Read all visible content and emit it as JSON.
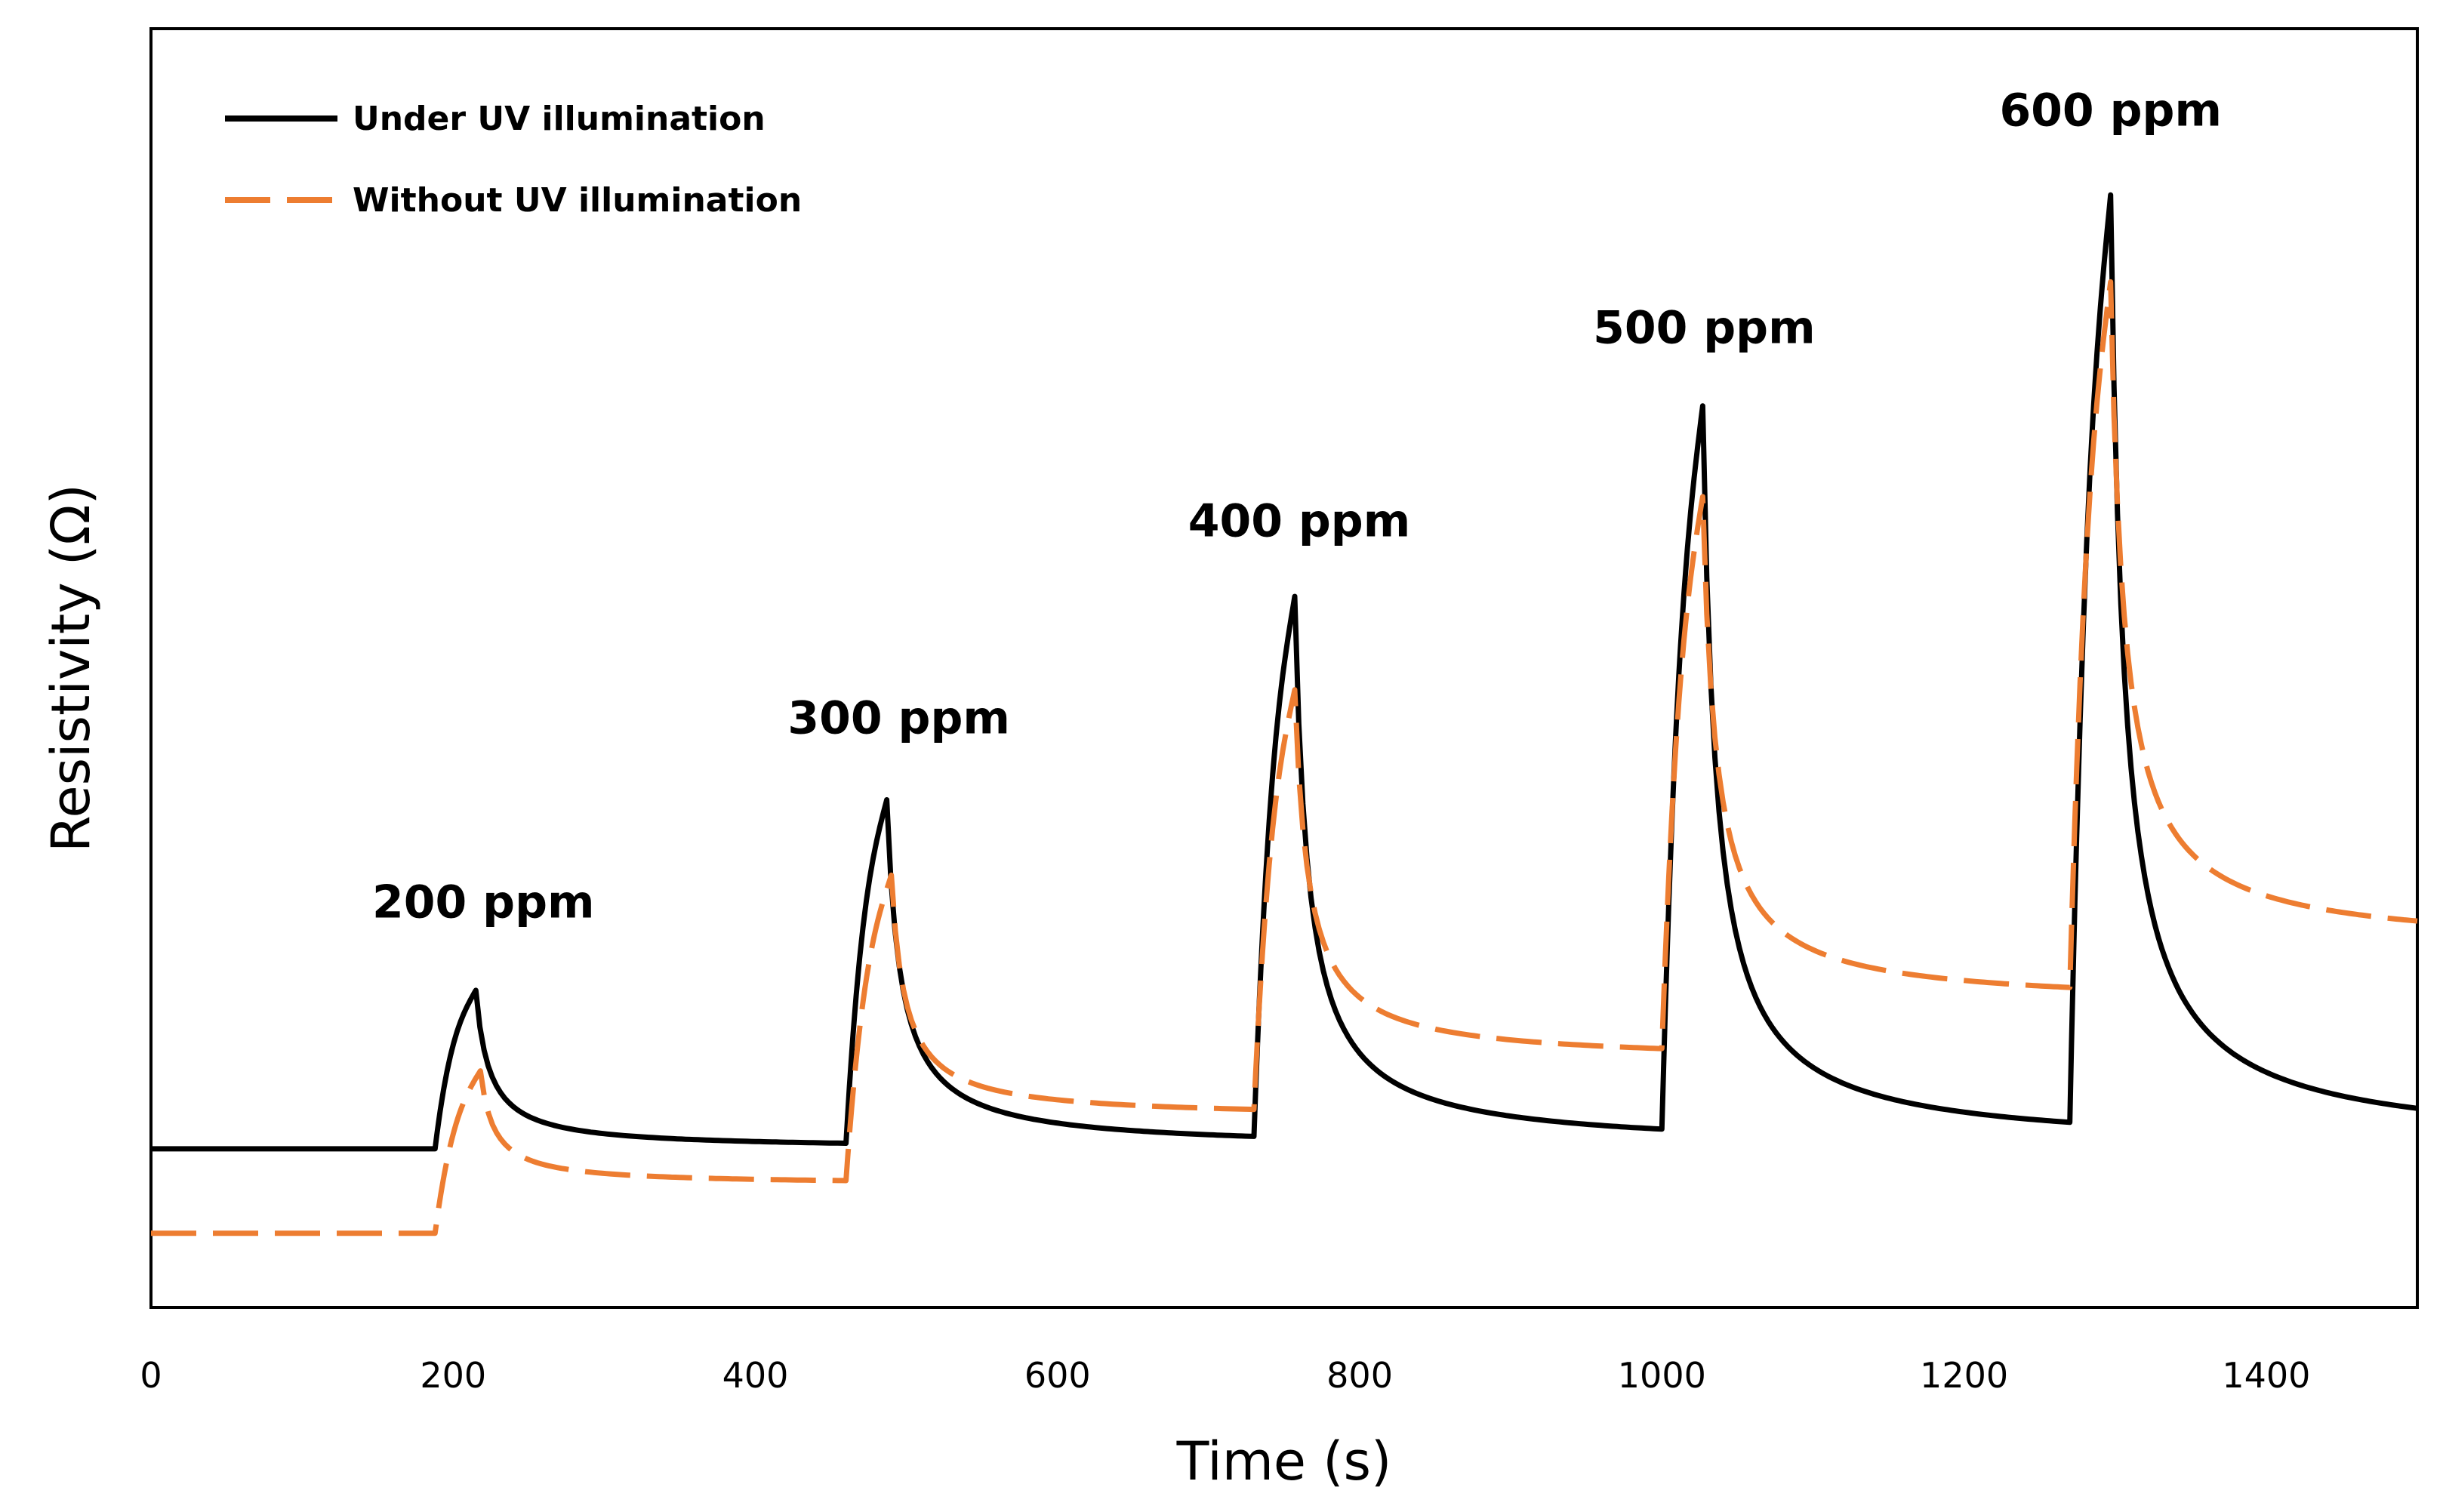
{
  "chart_data": {
    "type": "line",
    "title": "",
    "xlabel": "Time (s)",
    "ylabel": "Resistivity (Ω)",
    "xlim": [
      0,
      1500
    ],
    "ylim": [
      0,
      100
    ],
    "xticks": [
      0,
      200,
      400,
      600,
      800,
      1000,
      1200,
      1400
    ],
    "yticks_shown": false,
    "grid": false,
    "legend_position": "top-left",
    "series": [
      {
        "name": "Under UV illumination",
        "color": "#000000",
        "style": "solid",
        "baseline": 12.4,
        "pulses": [
          {
            "on": 188,
            "peak_time": 215,
            "peak": 24.8
          },
          {
            "on": 460,
            "peak_time": 487,
            "peak": 39.7
          },
          {
            "on": 730,
            "peak_time": 757,
            "peak": 55.6
          },
          {
            "on": 1000,
            "peak_time": 1027,
            "peak": 70.5
          },
          {
            "on": 1270,
            "peak_time": 1297,
            "peak": 87.0
          }
        ]
      },
      {
        "name": "Without UV illumination",
        "color": "#ED7D31",
        "style": "dashed",
        "baseline": 5.8,
        "pulses": [
          {
            "on": 188,
            "peak_time": 218,
            "peak": 18.5,
            "recovery": 9.6
          },
          {
            "on": 460,
            "peak_time": 490,
            "peak": 33.8,
            "recovery": 14.8
          },
          {
            "on": 730,
            "peak_time": 757,
            "peak": 48.3,
            "recovery": 19.2
          },
          {
            "on": 1000,
            "peak_time": 1027,
            "peak": 63.4,
            "recovery": 23.6
          },
          {
            "on": 1270,
            "peak_time": 1297,
            "peak": 80.2,
            "recovery": 28.0
          }
        ]
      }
    ],
    "annotations": [
      {
        "text": "200 ppm",
        "x": 220,
        "y": 30.5
      },
      {
        "text": "300 ppm",
        "x": 495,
        "y": 44.9
      },
      {
        "text": "400 ppm",
        "x": 760,
        "y": 60.3
      },
      {
        "text": "500 ppm",
        "x": 1028,
        "y": 75.4
      },
      {
        "text": "600 ppm",
        "x": 1297,
        "y": 92.4
      }
    ]
  }
}
